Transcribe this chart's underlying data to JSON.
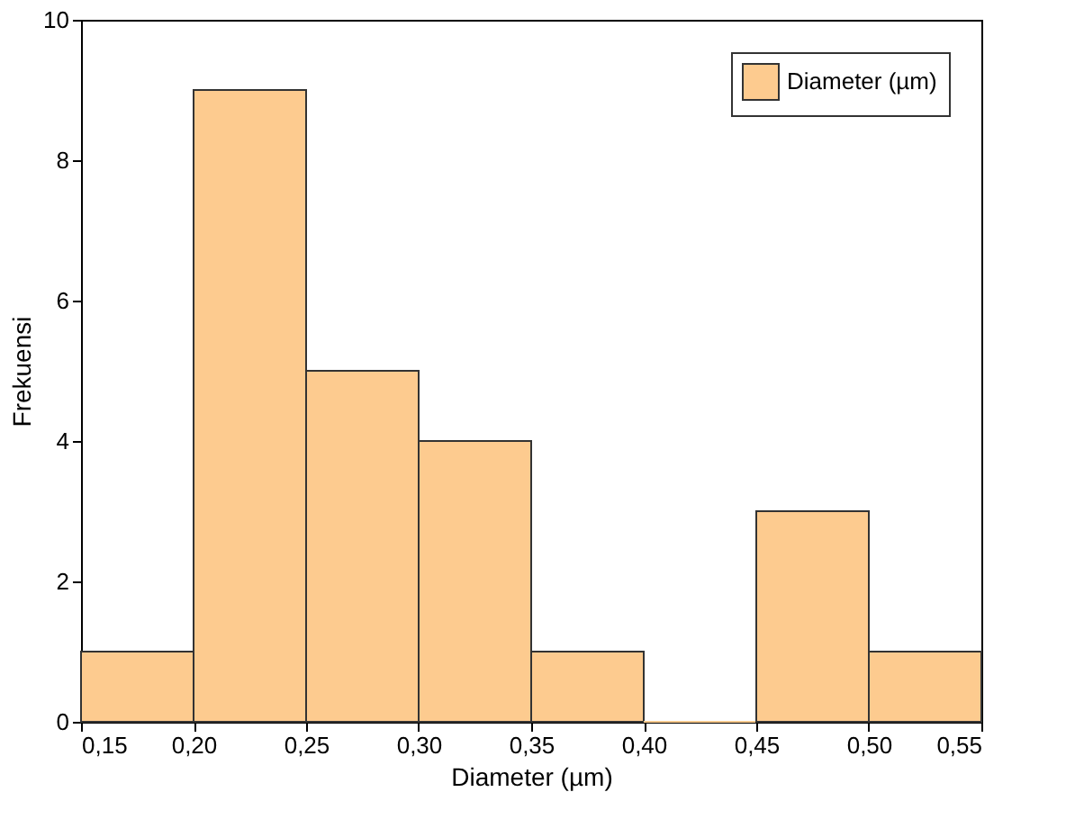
{
  "chart_data": {
    "type": "histogram",
    "xlabel": "Diameter (µm)",
    "ylabel": "Frekuensi",
    "bins": [
      0.15,
      0.2,
      0.25,
      0.3,
      0.35,
      0.4,
      0.45,
      0.5,
      0.55
    ],
    "series": [
      {
        "name": "Diameter (µm)",
        "color": "#fdcb8f",
        "values": [
          1,
          9,
          5,
          4,
          1,
          0,
          3,
          1
        ]
      }
    ],
    "xlim": [
      0.15,
      0.55
    ],
    "xticks": [
      {
        "value": 0.15,
        "label": "0,15"
      },
      {
        "value": 0.2,
        "label": "0,20"
      },
      {
        "value": 0.25,
        "label": "0,25"
      },
      {
        "value": 0.3,
        "label": "0,30"
      },
      {
        "value": 0.35,
        "label": "0,35"
      },
      {
        "value": 0.4,
        "label": "0,40"
      },
      {
        "value": 0.45,
        "label": "0,45"
      },
      {
        "value": 0.5,
        "label": "0,50"
      },
      {
        "value": 0.55,
        "label": "0,55"
      }
    ],
    "ylim": [
      0,
      10
    ],
    "yticks": [
      0,
      2,
      4,
      6,
      8,
      10
    ],
    "grid": false,
    "legend": "top right"
  }
}
